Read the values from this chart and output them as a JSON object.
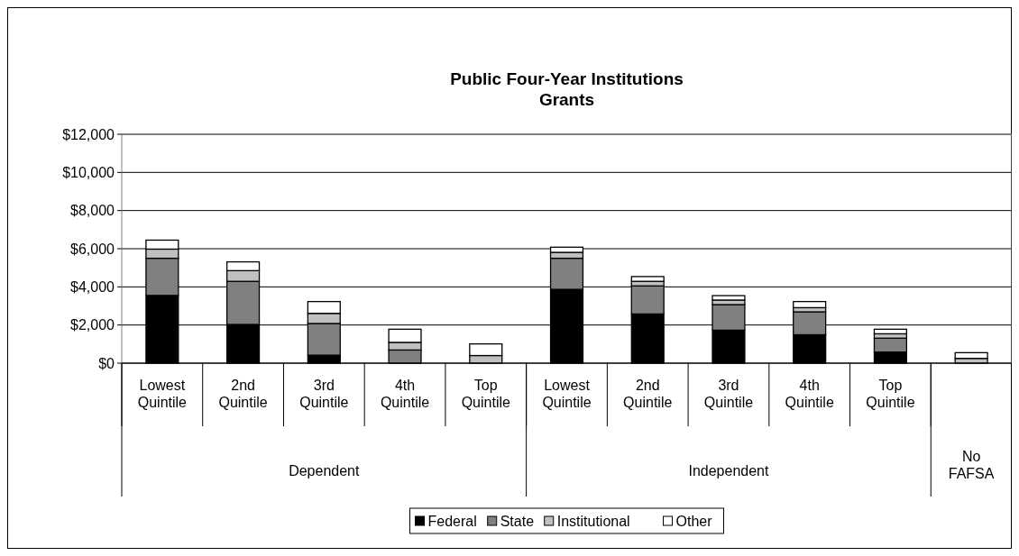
{
  "chart_data": {
    "type": "bar",
    "title": "Public Four-Year Institutions\nGrants",
    "stacked": true,
    "categories": [
      "Lowest Quintile",
      "2nd Quintile",
      "3rd Quintile",
      "4th Quintile",
      "Top Quintile",
      "Lowest Quintile",
      "2nd Quintile",
      "3rd Quintile",
      "4th Quintile",
      "Top Quintile",
      null
    ],
    "annotations": [
      "Dependent",
      "Independent",
      "No FAFSA"
    ],
    "series": [
      {
        "name": "Federal",
        "color": "#000000",
        "values": [
          3550,
          2030,
          420,
          0,
          0,
          3870,
          2580,
          1730,
          1490,
          580,
          0
        ]
      },
      {
        "name": "State",
        "color": "#808080",
        "values": [
          1950,
          2260,
          1660,
          690,
          0,
          1630,
          1470,
          1340,
          1200,
          730,
          0
        ]
      },
      {
        "name": "Institutional",
        "color": "#c0c0c0",
        "values": [
          480,
          560,
          530,
          400,
          400,
          310,
          240,
          240,
          220,
          230,
          250
        ]
      },
      {
        "name": "Other",
        "color": "#ffffff",
        "values": [
          470,
          460,
          620,
          690,
          610,
          270,
          250,
          230,
          320,
          240,
          300
        ]
      }
    ],
    "ylim": [
      0,
      12000
    ],
    "yticks": [
      {
        "value": 0,
        "label": "$0"
      },
      {
        "value": 2000,
        "label": "$2,000"
      },
      {
        "value": 4000,
        "label": "$4,000"
      },
      {
        "value": 6000,
        "label": "$6,000"
      },
      {
        "value": 8000,
        "label": "$8,000"
      },
      {
        "value": 10000,
        "label": "$10,000"
      },
      {
        "value": 12000,
        "label": "$12,000"
      }
    ],
    "grid": "y",
    "legend": "bottom"
  }
}
